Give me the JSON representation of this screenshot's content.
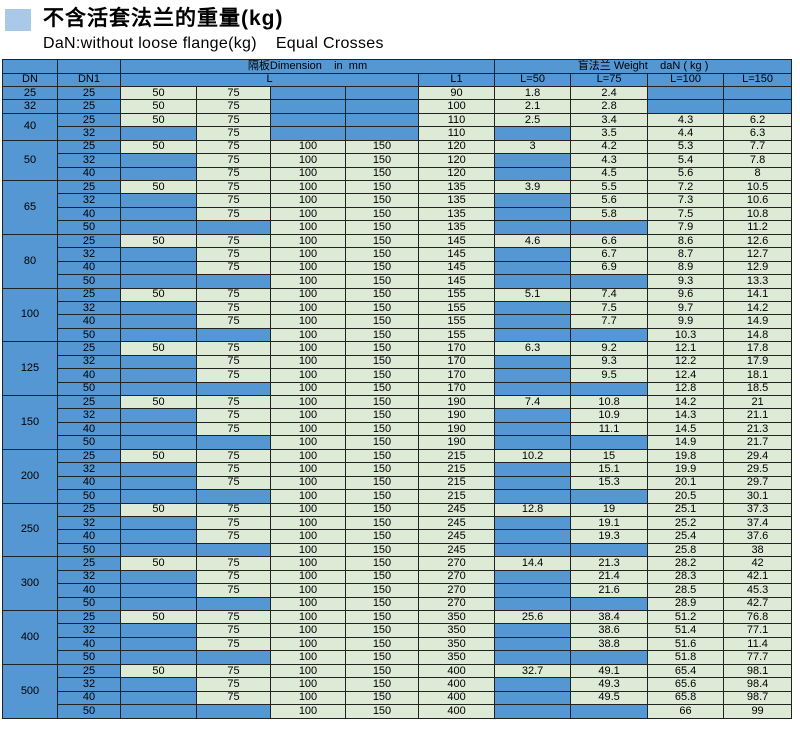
{
  "header": {
    "title": "不含活套法兰的重量(kg)",
    "subtitle": "DaN:without loose flange(kg)    Equal Crosses"
  },
  "colors": {
    "cell_blue": "#5597d3",
    "cell_green": "#dcead6",
    "title_marker": "#aac9e8",
    "border": "#222222"
  },
  "table": {
    "head": {
      "dimension_group": "隔板Dimension    in  mm",
      "weight_group": "盲法兰 Weight    daN ( kg )",
      "dn": "DN",
      "dn1": "DN1",
      "l": "L",
      "l1": "L1",
      "weight_cols": [
        "L=50",
        "L=75",
        "L=100",
        "L=150"
      ]
    },
    "groups": [
      {
        "dn": "25",
        "rows": [
          {
            "dn1": "25",
            "l": [
              "50",
              "75",
              "",
              ""
            ],
            "l1": "90",
            "w": [
              "1.8",
              "2.4",
              "",
              ""
            ]
          }
        ]
      },
      {
        "dn": "32",
        "rows": [
          {
            "dn1": "25",
            "l": [
              "50",
              "75",
              "",
              ""
            ],
            "l1": "100",
            "w": [
              "2.1",
              "2.8",
              "",
              ""
            ]
          }
        ]
      },
      {
        "dn": "40",
        "rows": [
          {
            "dn1": "25",
            "l": [
              "50",
              "75",
              "",
              ""
            ],
            "l1": "110",
            "w": [
              "2.5",
              "3.4",
              "4.3",
              "6.2"
            ]
          },
          {
            "dn1": "32",
            "l": [
              "",
              "75",
              "",
              ""
            ],
            "l1": "110",
            "w": [
              "",
              "3.5",
              "4.4",
              "6.3"
            ]
          }
        ]
      },
      {
        "dn": "50",
        "rows": [
          {
            "dn1": "25",
            "l": [
              "50",
              "75",
              "100",
              "150"
            ],
            "l1": "120",
            "w": [
              "3",
              "4.2",
              "5.3",
              "7.7"
            ]
          },
          {
            "dn1": "32",
            "l": [
              "",
              "75",
              "100",
              "150"
            ],
            "l1": "120",
            "w": [
              "",
              "4.3",
              "5.4",
              "7.8"
            ]
          },
          {
            "dn1": "40",
            "l": [
              "",
              "75",
              "100",
              "150"
            ],
            "l1": "120",
            "w": [
              "",
              "4.5",
              "5.6",
              "8"
            ]
          }
        ]
      },
      {
        "dn": "65",
        "rows": [
          {
            "dn1": "25",
            "l": [
              "50",
              "75",
              "100",
              "150"
            ],
            "l1": "135",
            "w": [
              "3.9",
              "5.5",
              "7.2",
              "10.5"
            ]
          },
          {
            "dn1": "32",
            "l": [
              "",
              "75",
              "100",
              "150"
            ],
            "l1": "135",
            "w": [
              "",
              "5.6",
              "7.3",
              "10.6"
            ]
          },
          {
            "dn1": "40",
            "l": [
              "",
              "75",
              "100",
              "150"
            ],
            "l1": "135",
            "w": [
              "",
              "5.8",
              "7.5",
              "10.8"
            ]
          },
          {
            "dn1": "50",
            "l": [
              "",
              "",
              "100",
              "150"
            ],
            "l1": "135",
            "w": [
              "",
              "",
              "7.9",
              "11.2"
            ]
          }
        ]
      },
      {
        "dn": "80",
        "rows": [
          {
            "dn1": "25",
            "l": [
              "50",
              "75",
              "100",
              "150"
            ],
            "l1": "145",
            "w": [
              "4.6",
              "6.6",
              "8.6",
              "12.6"
            ]
          },
          {
            "dn1": "32",
            "l": [
              "",
              "75",
              "100",
              "150"
            ],
            "l1": "145",
            "w": [
              "",
              "6.7",
              "8.7",
              "12.7"
            ]
          },
          {
            "dn1": "40",
            "l": [
              "",
              "75",
              "100",
              "150"
            ],
            "l1": "145",
            "w": [
              "",
              "6.9",
              "8.9",
              "12.9"
            ]
          },
          {
            "dn1": "50",
            "l": [
              "",
              "",
              "100",
              "150"
            ],
            "l1": "145",
            "w": [
              "",
              "",
              "9.3",
              "13.3"
            ]
          }
        ]
      },
      {
        "dn": "100",
        "rows": [
          {
            "dn1": "25",
            "l": [
              "50",
              "75",
              "100",
              "150"
            ],
            "l1": "155",
            "w": [
              "5.1",
              "7.4",
              "9.6",
              "14.1"
            ]
          },
          {
            "dn1": "32",
            "l": [
              "",
              "75",
              "100",
              "150"
            ],
            "l1": "155",
            "w": [
              "",
              "7.5",
              "9.7",
              "14.2"
            ]
          },
          {
            "dn1": "40",
            "l": [
              "",
              "75",
              "100",
              "150"
            ],
            "l1": "155",
            "w": [
              "",
              "7.7",
              "9.9",
              "14.9"
            ]
          },
          {
            "dn1": "50",
            "l": [
              "",
              "",
              "100",
              "150"
            ],
            "l1": "155",
            "w": [
              "",
              "",
              "10.3",
              "14.8"
            ]
          }
        ]
      },
      {
        "dn": "125",
        "rows": [
          {
            "dn1": "25",
            "l": [
              "50",
              "75",
              "100",
              "150"
            ],
            "l1": "170",
            "w": [
              "6.3",
              "9.2",
              "12.1",
              "17.8"
            ]
          },
          {
            "dn1": "32",
            "l": [
              "",
              "75",
              "100",
              "150"
            ],
            "l1": "170",
            "w": [
              "",
              "9.3",
              "12.2",
              "17.9"
            ]
          },
          {
            "dn1": "40",
            "l": [
              "",
              "75",
              "100",
              "150"
            ],
            "l1": "170",
            "w": [
              "",
              "9.5",
              "12.4",
              "18.1"
            ]
          },
          {
            "dn1": "50",
            "l": [
              "",
              "",
              "100",
              "150"
            ],
            "l1": "170",
            "w": [
              "",
              "",
              "12.8",
              "18.5"
            ]
          }
        ]
      },
      {
        "dn": "150",
        "rows": [
          {
            "dn1": "25",
            "l": [
              "50",
              "75",
              "100",
              "150"
            ],
            "l1": "190",
            "w": [
              "7.4",
              "10.8",
              "14.2",
              "21"
            ]
          },
          {
            "dn1": "32",
            "l": [
              "",
              "75",
              "100",
              "150"
            ],
            "l1": "190",
            "w": [
              "",
              "10.9",
              "14.3",
              "21.1"
            ]
          },
          {
            "dn1": "40",
            "l": [
              "",
              "75",
              "100",
              "150"
            ],
            "l1": "190",
            "w": [
              "",
              "11.1",
              "14.5",
              "21.3"
            ]
          },
          {
            "dn1": "50",
            "l": [
              "",
              "",
              "100",
              "150"
            ],
            "l1": "190",
            "w": [
              "",
              "",
              "14.9",
              "21.7"
            ]
          }
        ]
      },
      {
        "dn": "200",
        "rows": [
          {
            "dn1": "25",
            "l": [
              "50",
              "75",
              "100",
              "150"
            ],
            "l1": "215",
            "w": [
              "10.2",
              "15",
              "19.8",
              "29.4"
            ]
          },
          {
            "dn1": "32",
            "l": [
              "",
              "75",
              "100",
              "150"
            ],
            "l1": "215",
            "w": [
              "",
              "15.1",
              "19.9",
              "29.5"
            ]
          },
          {
            "dn1": "40",
            "l": [
              "",
              "75",
              "100",
              "150"
            ],
            "l1": "215",
            "w": [
              "",
              "15.3",
              "20.1",
              "29.7"
            ]
          },
          {
            "dn1": "50",
            "l": [
              "",
              "",
              "100",
              "150"
            ],
            "l1": "215",
            "w": [
              "",
              "",
              "20.5",
              "30.1"
            ]
          }
        ]
      },
      {
        "dn": "250",
        "rows": [
          {
            "dn1": "25",
            "l": [
              "50",
              "75",
              "100",
              "150"
            ],
            "l1": "245",
            "w": [
              "12.8",
              "19",
              "25.1",
              "37.3"
            ]
          },
          {
            "dn1": "32",
            "l": [
              "",
              "75",
              "100",
              "150"
            ],
            "l1": "245",
            "w": [
              "",
              "19.1",
              "25.2",
              "37.4"
            ]
          },
          {
            "dn1": "40",
            "l": [
              "",
              "75",
              "100",
              "150"
            ],
            "l1": "245",
            "w": [
              "",
              "19.3",
              "25.4",
              "37.6"
            ]
          },
          {
            "dn1": "50",
            "l": [
              "",
              "",
              "100",
              "150"
            ],
            "l1": "245",
            "w": [
              "",
              "",
              "25.8",
              "38"
            ]
          }
        ]
      },
      {
        "dn": "300",
        "rows": [
          {
            "dn1": "25",
            "l": [
              "50",
              "75",
              "100",
              "150"
            ],
            "l1": "270",
            "w": [
              "14.4",
              "21.3",
              "28.2",
              "42"
            ]
          },
          {
            "dn1": "32",
            "l": [
              "",
              "75",
              "100",
              "150"
            ],
            "l1": "270",
            "w": [
              "",
              "21.4",
              "28.3",
              "42.1"
            ]
          },
          {
            "dn1": "40",
            "l": [
              "",
              "75",
              "100",
              "150"
            ],
            "l1": "270",
            "w": [
              "",
              "21.6",
              "28.5",
              "45.3"
            ]
          },
          {
            "dn1": "50",
            "l": [
              "",
              "",
              "100",
              "150"
            ],
            "l1": "270",
            "w": [
              "",
              "",
              "28.9",
              "42.7"
            ]
          }
        ]
      },
      {
        "dn": "400",
        "rows": [
          {
            "dn1": "25",
            "l": [
              "50",
              "75",
              "100",
              "150"
            ],
            "l1": "350",
            "w": [
              "25.6",
              "38.4",
              "51.2",
              "76.8"
            ]
          },
          {
            "dn1": "32",
            "l": [
              "",
              "75",
              "100",
              "150"
            ],
            "l1": "350",
            "w": [
              "",
              "38.6",
              "51.4",
              "77.1"
            ]
          },
          {
            "dn1": "40",
            "l": [
              "",
              "75",
              "100",
              "150"
            ],
            "l1": "350",
            "w": [
              "",
              "38.8",
              "51.6",
              "11.4"
            ]
          },
          {
            "dn1": "50",
            "l": [
              "",
              "",
              "100",
              "150"
            ],
            "l1": "350",
            "w": [
              "",
              "",
              "51.8",
              "77.7"
            ]
          }
        ]
      },
      {
        "dn": "500",
        "rows": [
          {
            "dn1": "25",
            "l": [
              "50",
              "75",
              "100",
              "150"
            ],
            "l1": "400",
            "w": [
              "32.7",
              "49.1",
              "65.4",
              "98.1"
            ]
          },
          {
            "dn1": "32",
            "l": [
              "",
              "75",
              "100",
              "150"
            ],
            "l1": "400",
            "w": [
              "",
              "49.3",
              "65.6",
              "98.4"
            ]
          },
          {
            "dn1": "40",
            "l": [
              "",
              "75",
              "100",
              "150"
            ],
            "l1": "400",
            "w": [
              "",
              "49.5",
              "65.8",
              "98.7"
            ]
          },
          {
            "dn1": "50",
            "l": [
              "",
              "",
              "100",
              "150"
            ],
            "l1": "400",
            "w": [
              "",
              "",
              "66",
              "99"
            ]
          }
        ]
      }
    ]
  }
}
